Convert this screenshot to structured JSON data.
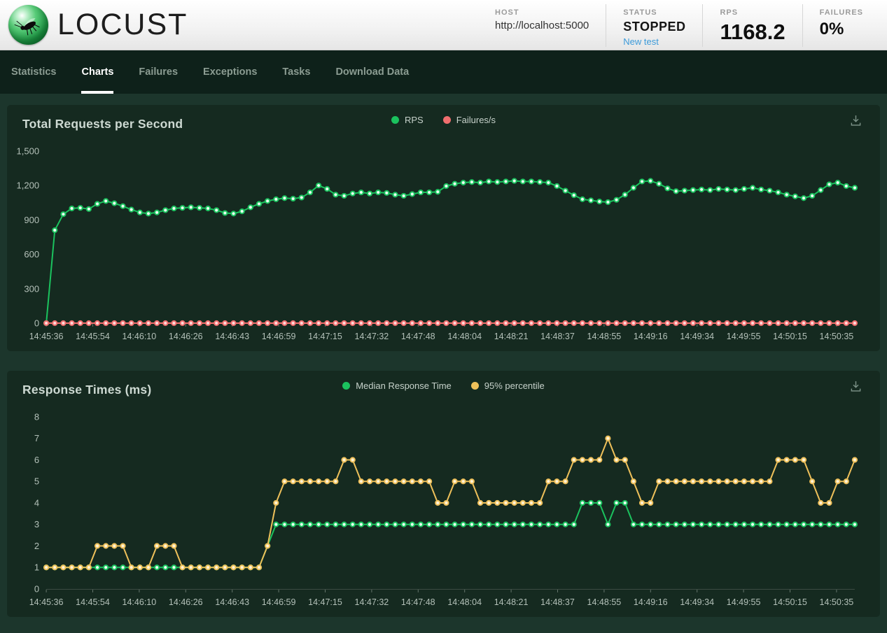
{
  "header": {
    "logo_text": "LOCUST",
    "host": {
      "label": "HOST",
      "value": "http://localhost:5000"
    },
    "status": {
      "label": "STATUS",
      "value": "STOPPED",
      "link": "New test"
    },
    "rps": {
      "label": "RPS",
      "value": "1168.2"
    },
    "failures": {
      "label": "FAILURES",
      "value": "0%"
    }
  },
  "nav": {
    "tabs": [
      {
        "label": "Statistics",
        "active": false
      },
      {
        "label": "Charts",
        "active": true
      },
      {
        "label": "Failures",
        "active": false
      },
      {
        "label": "Exceptions",
        "active": false
      },
      {
        "label": "Tasks",
        "active": false
      },
      {
        "label": "Download Data",
        "active": false
      }
    ]
  },
  "icons": {
    "logo": "locust-logo",
    "download": "download-icon"
  },
  "colors": {
    "green": "#1bc25e",
    "red": "#f06e6e",
    "yellow": "#eec05a",
    "link_blue": "#3b9ad9",
    "page_bg": "#1c362c",
    "panel_bg": "#152a20",
    "nav_bg": "#0e211a"
  },
  "chart_data": [
    {
      "type": "line",
      "title": "Total Requests per Second",
      "grid": false,
      "legend_position": "top-center",
      "ylim": [
        0,
        1500
      ],
      "y_tick_values": [
        0,
        300,
        600,
        900,
        1200,
        1500
      ],
      "y_tick_labels": [
        "0",
        "300",
        "600",
        "900",
        "1,200",
        "1,500"
      ],
      "x_tick_labels": [
        "14:45:36",
        "14:45:54",
        "14:46:10",
        "14:46:26",
        "14:46:43",
        "14:46:59",
        "14:47:15",
        "14:47:32",
        "14:47:48",
        "14:48:04",
        "14:48:21",
        "14:48:37",
        "14:48:55",
        "14:49:16",
        "14:49:34",
        "14:49:55",
        "14:50:15",
        "14:50:35"
      ],
      "series": [
        {
          "name": "RPS",
          "color": "#1bc25e",
          "dot_fill": "#eafff2",
          "values": [
            0,
            810,
            950,
            1000,
            1005,
            995,
            1040,
            1065,
            1045,
            1020,
            990,
            965,
            955,
            965,
            985,
            1000,
            1005,
            1010,
            1005,
            1000,
            985,
            960,
            955,
            975,
            1010,
            1040,
            1065,
            1080,
            1090,
            1085,
            1095,
            1140,
            1200,
            1170,
            1120,
            1110,
            1130,
            1140,
            1130,
            1140,
            1135,
            1120,
            1110,
            1125,
            1140,
            1140,
            1145,
            1195,
            1215,
            1225,
            1230,
            1225,
            1235,
            1230,
            1235,
            1240,
            1235,
            1235,
            1230,
            1225,
            1195,
            1155,
            1115,
            1080,
            1070,
            1060,
            1055,
            1075,
            1120,
            1180,
            1235,
            1240,
            1215,
            1175,
            1150,
            1155,
            1160,
            1165,
            1160,
            1170,
            1165,
            1160,
            1170,
            1180,
            1165,
            1155,
            1140,
            1120,
            1105,
            1090,
            1110,
            1160,
            1210,
            1225,
            1195,
            1180
          ]
        },
        {
          "name": "Failures/s",
          "color": "#f06e6e",
          "dot_fill": "#ffd9d9",
          "values": [
            0,
            0,
            0,
            0,
            0,
            0,
            0,
            0,
            0,
            0,
            0,
            0,
            0,
            0,
            0,
            0,
            0,
            0,
            0,
            0,
            0,
            0,
            0,
            0,
            0,
            0,
            0,
            0,
            0,
            0,
            0,
            0,
            0,
            0,
            0,
            0,
            0,
            0,
            0,
            0,
            0,
            0,
            0,
            0,
            0,
            0,
            0,
            0,
            0,
            0,
            0,
            0,
            0,
            0,
            0,
            0,
            0,
            0,
            0,
            0,
            0,
            0,
            0,
            0,
            0,
            0,
            0,
            0,
            0,
            0,
            0,
            0,
            0,
            0,
            0,
            0,
            0,
            0,
            0,
            0,
            0,
            0,
            0,
            0,
            0,
            0,
            0,
            0,
            0,
            0,
            0,
            0,
            0,
            0,
            0,
            0
          ]
        }
      ]
    },
    {
      "type": "line",
      "title": "Response Times (ms)",
      "grid": false,
      "legend_position": "top-center",
      "ylim": [
        0,
        8
      ],
      "y_tick_values": [
        0,
        1,
        2,
        3,
        4,
        5,
        6,
        7,
        8
      ],
      "y_tick_labels": [
        "0",
        "1",
        "2",
        "3",
        "4",
        "5",
        "6",
        "7",
        "8"
      ],
      "x_tick_labels": [
        "14:45:36",
        "14:45:54",
        "14:46:10",
        "14:46:26",
        "14:46:43",
        "14:46:59",
        "14:47:15",
        "14:47:32",
        "14:47:48",
        "14:48:04",
        "14:48:21",
        "14:48:37",
        "14:48:55",
        "14:49:16",
        "14:49:34",
        "14:49:55",
        "14:50:15",
        "14:50:35"
      ],
      "series": [
        {
          "name": "Median Response Time",
          "color": "#1bc25e",
          "dot_fill": "#eafff2",
          "values": [
            1,
            1,
            1,
            1,
            1,
            1,
            1,
            1,
            1,
            1,
            1,
            1,
            1,
            1,
            1,
            1,
            1,
            1,
            1,
            1,
            1,
            1,
            1,
            1,
            1,
            1,
            2,
            3,
            3,
            3,
            3,
            3,
            3,
            3,
            3,
            3,
            3,
            3,
            3,
            3,
            3,
            3,
            3,
            3,
            3,
            3,
            3,
            3,
            3,
            3,
            3,
            3,
            3,
            3,
            3,
            3,
            3,
            3,
            3,
            3,
            3,
            3,
            3,
            4,
            4,
            4,
            3,
            4,
            4,
            3,
            3,
            3,
            3,
            3,
            3,
            3,
            3,
            3,
            3,
            3,
            3,
            3,
            3,
            3,
            3,
            3,
            3,
            3,
            3,
            3,
            3,
            3,
            3,
            3,
            3,
            3
          ]
        },
        {
          "name": "95% percentile",
          "color": "#eec05a",
          "dot_fill": "#fff3d6",
          "values": [
            1,
            1,
            1,
            1,
            1,
            1,
            2,
            2,
            2,
            2,
            1,
            1,
            1,
            2,
            2,
            2,
            1,
            1,
            1,
            1,
            1,
            1,
            1,
            1,
            1,
            1,
            2,
            4,
            5,
            5,
            5,
            5,
            5,
            5,
            5,
            6,
            6,
            5,
            5,
            5,
            5,
            5,
            5,
            5,
            5,
            5,
            4,
            4,
            5,
            5,
            5,
            4,
            4,
            4,
            4,
            4,
            4,
            4,
            4,
            5,
            5,
            5,
            6,
            6,
            6,
            6,
            7,
            6,
            6,
            5,
            4,
            4,
            5,
            5,
            5,
            5,
            5,
            5,
            5,
            5,
            5,
            5,
            5,
            5,
            5,
            5,
            6,
            6,
            6,
            6,
            5,
            4,
            4,
            5,
            5,
            6
          ]
        }
      ]
    }
  ]
}
